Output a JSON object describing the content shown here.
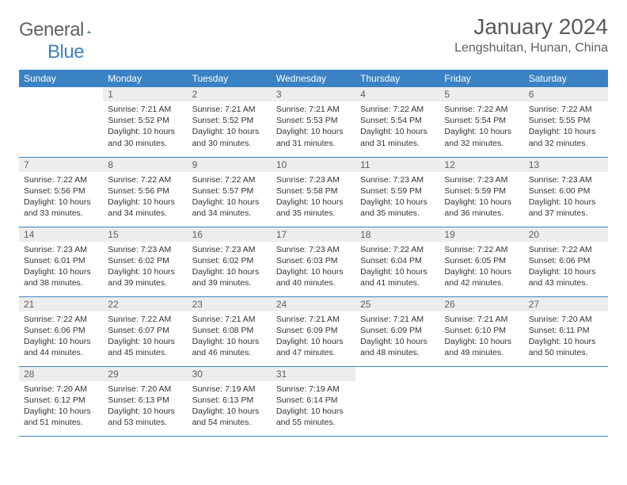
{
  "brand": {
    "text1": "General",
    "text2": "Blue"
  },
  "title": "January 2024",
  "location": "Lengshuitan, Hunan, China",
  "headers": [
    "Sunday",
    "Monday",
    "Tuesday",
    "Wednesday",
    "Thursday",
    "Friday",
    "Saturday"
  ],
  "colors": {
    "header_bg": "#3b82c4",
    "header_text": "#ffffff",
    "daynum_bg": "#eceded",
    "logo_gray": "#626262",
    "logo_blue": "#3b82c4"
  },
  "weeks": [
    [
      null,
      {
        "n": "1",
        "sr": "7:21 AM",
        "ss": "5:52 PM",
        "dl": "10 hours and 30 minutes."
      },
      {
        "n": "2",
        "sr": "7:21 AM",
        "ss": "5:52 PM",
        "dl": "10 hours and 30 minutes."
      },
      {
        "n": "3",
        "sr": "7:21 AM",
        "ss": "5:53 PM",
        "dl": "10 hours and 31 minutes."
      },
      {
        "n": "4",
        "sr": "7:22 AM",
        "ss": "5:54 PM",
        "dl": "10 hours and 31 minutes."
      },
      {
        "n": "5",
        "sr": "7:22 AM",
        "ss": "5:54 PM",
        "dl": "10 hours and 32 minutes."
      },
      {
        "n": "6",
        "sr": "7:22 AM",
        "ss": "5:55 PM",
        "dl": "10 hours and 32 minutes."
      }
    ],
    [
      {
        "n": "7",
        "sr": "7:22 AM",
        "ss": "5:56 PM",
        "dl": "10 hours and 33 minutes."
      },
      {
        "n": "8",
        "sr": "7:22 AM",
        "ss": "5:56 PM",
        "dl": "10 hours and 34 minutes."
      },
      {
        "n": "9",
        "sr": "7:22 AM",
        "ss": "5:57 PM",
        "dl": "10 hours and 34 minutes."
      },
      {
        "n": "10",
        "sr": "7:23 AM",
        "ss": "5:58 PM",
        "dl": "10 hours and 35 minutes."
      },
      {
        "n": "11",
        "sr": "7:23 AM",
        "ss": "5:59 PM",
        "dl": "10 hours and 35 minutes."
      },
      {
        "n": "12",
        "sr": "7:23 AM",
        "ss": "5:59 PM",
        "dl": "10 hours and 36 minutes."
      },
      {
        "n": "13",
        "sr": "7:23 AM",
        "ss": "6:00 PM",
        "dl": "10 hours and 37 minutes."
      }
    ],
    [
      {
        "n": "14",
        "sr": "7:23 AM",
        "ss": "6:01 PM",
        "dl": "10 hours and 38 minutes."
      },
      {
        "n": "15",
        "sr": "7:23 AM",
        "ss": "6:02 PM",
        "dl": "10 hours and 39 minutes."
      },
      {
        "n": "16",
        "sr": "7:23 AM",
        "ss": "6:02 PM",
        "dl": "10 hours and 39 minutes."
      },
      {
        "n": "17",
        "sr": "7:23 AM",
        "ss": "6:03 PM",
        "dl": "10 hours and 40 minutes."
      },
      {
        "n": "18",
        "sr": "7:22 AM",
        "ss": "6:04 PM",
        "dl": "10 hours and 41 minutes."
      },
      {
        "n": "19",
        "sr": "7:22 AM",
        "ss": "6:05 PM",
        "dl": "10 hours and 42 minutes."
      },
      {
        "n": "20",
        "sr": "7:22 AM",
        "ss": "6:06 PM",
        "dl": "10 hours and 43 minutes."
      }
    ],
    [
      {
        "n": "21",
        "sr": "7:22 AM",
        "ss": "6:06 PM",
        "dl": "10 hours and 44 minutes."
      },
      {
        "n": "22",
        "sr": "7:22 AM",
        "ss": "6:07 PM",
        "dl": "10 hours and 45 minutes."
      },
      {
        "n": "23",
        "sr": "7:21 AM",
        "ss": "6:08 PM",
        "dl": "10 hours and 46 minutes."
      },
      {
        "n": "24",
        "sr": "7:21 AM",
        "ss": "6:09 PM",
        "dl": "10 hours and 47 minutes."
      },
      {
        "n": "25",
        "sr": "7:21 AM",
        "ss": "6:09 PM",
        "dl": "10 hours and 48 minutes."
      },
      {
        "n": "26",
        "sr": "7:21 AM",
        "ss": "6:10 PM",
        "dl": "10 hours and 49 minutes."
      },
      {
        "n": "27",
        "sr": "7:20 AM",
        "ss": "6:11 PM",
        "dl": "10 hours and 50 minutes."
      }
    ],
    [
      {
        "n": "28",
        "sr": "7:20 AM",
        "ss": "6:12 PM",
        "dl": "10 hours and 51 minutes."
      },
      {
        "n": "29",
        "sr": "7:20 AM",
        "ss": "6:13 PM",
        "dl": "10 hours and 53 minutes."
      },
      {
        "n": "30",
        "sr": "7:19 AM",
        "ss": "6:13 PM",
        "dl": "10 hours and 54 minutes."
      },
      {
        "n": "31",
        "sr": "7:19 AM",
        "ss": "6:14 PM",
        "dl": "10 hours and 55 minutes."
      },
      null,
      null,
      null
    ]
  ],
  "labels": {
    "sunrise": "Sunrise:",
    "sunset": "Sunset:",
    "daylight": "Daylight:"
  }
}
